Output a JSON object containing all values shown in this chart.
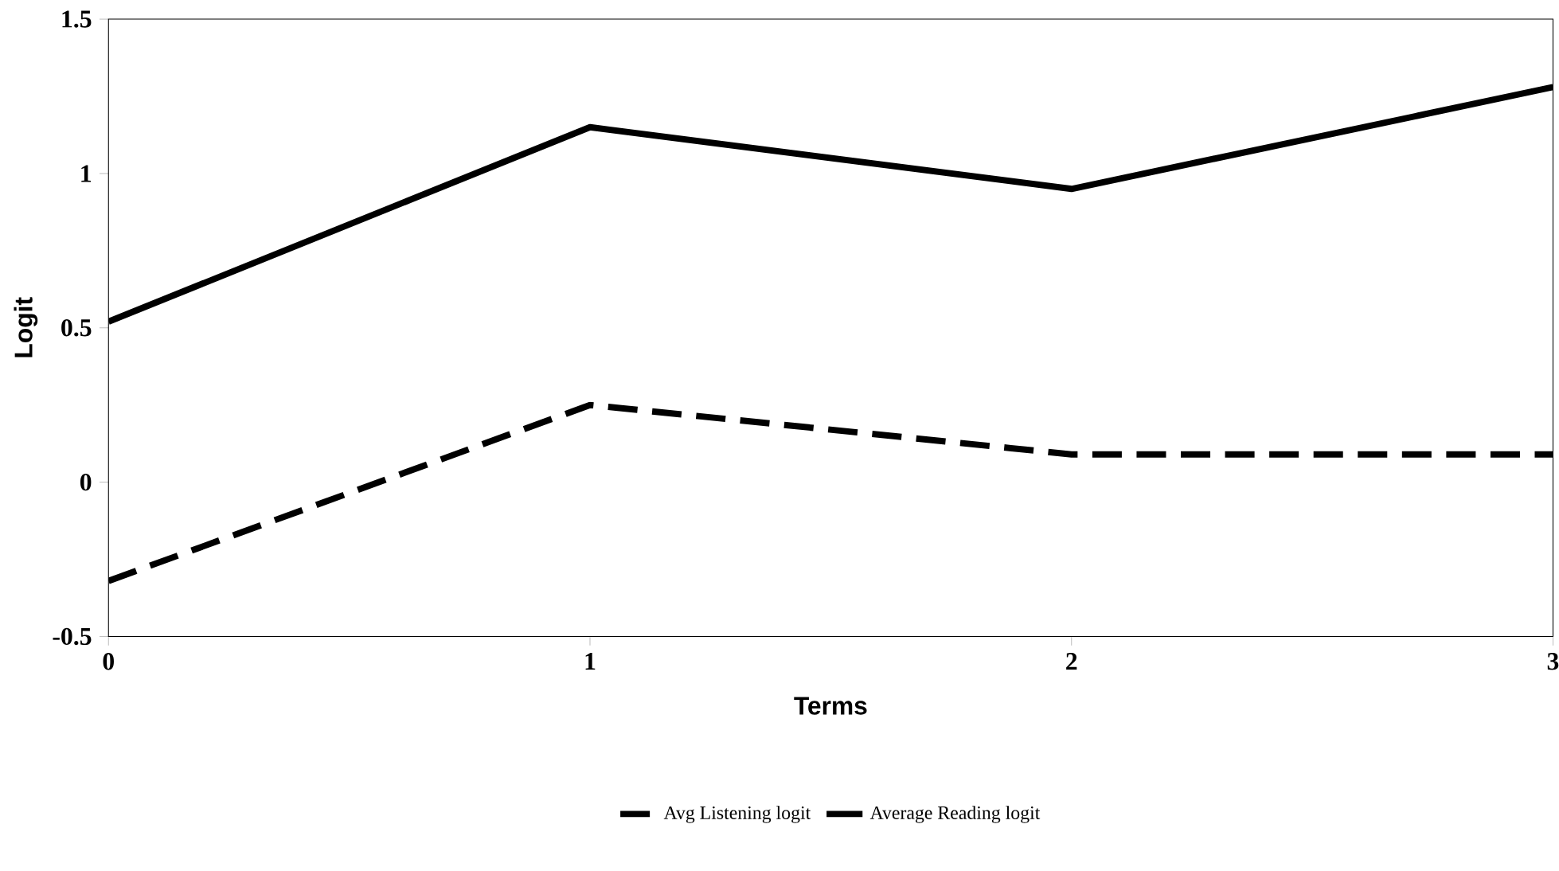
{
  "chart_data": {
    "type": "line",
    "xlabel": "Terms",
    "ylabel": "Logit",
    "x": [
      0,
      1,
      2,
      3
    ],
    "xlim": [
      0,
      3
    ],
    "xticks": [
      0,
      1,
      2,
      3
    ],
    "ylim": [
      -0.5,
      1.5
    ],
    "yticks": [
      -0.5,
      0,
      0.5,
      1,
      1.5
    ],
    "legend": "bottom",
    "grid": false,
    "marker": "none",
    "series": [
      {
        "name": "Avg Listening logit",
        "color": "#000000",
        "line_style": "dashed",
        "values": [
          -0.32,
          0.25,
          0.09,
          0.09
        ]
      },
      {
        "name": "Average Reading logit",
        "color": "#000000",
        "line_style": "solid",
        "values": [
          0.52,
          1.15,
          0.95,
          1.28
        ]
      }
    ]
  }
}
